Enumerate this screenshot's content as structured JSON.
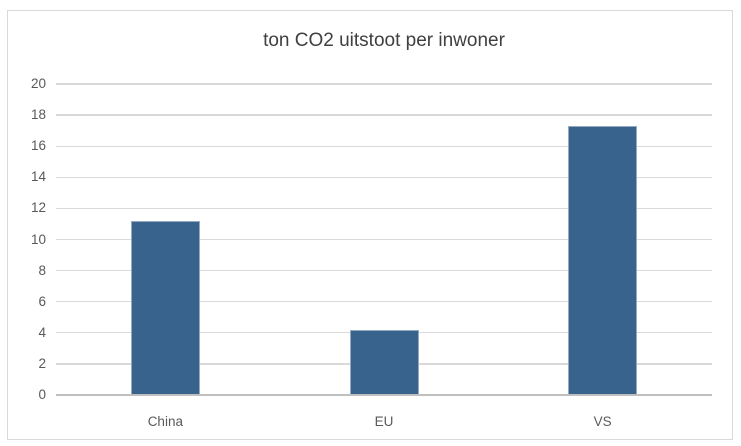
{
  "chart_data": {
    "type": "bar",
    "title": "ton CO2 uitstoot per inwoner",
    "categories": [
      "China",
      "EU",
      "VS"
    ],
    "values": [
      11.2,
      4.2,
      17.3
    ],
    "xlabel": "",
    "ylabel": "",
    "ylim": [
      0,
      20
    ],
    "yticks": [
      0,
      2,
      4,
      6,
      8,
      10,
      12,
      14,
      16,
      18,
      20
    ],
    "grid": true,
    "legend": false,
    "colors": {
      "bar_fill": "#38638C",
      "bar_edge": "#93AAC2",
      "gridline": "#D9D9D9",
      "axis_line": "#BFBFBF",
      "tick_label": "#595959",
      "title": "#404040",
      "frame_border": "#D9D9D9"
    }
  }
}
